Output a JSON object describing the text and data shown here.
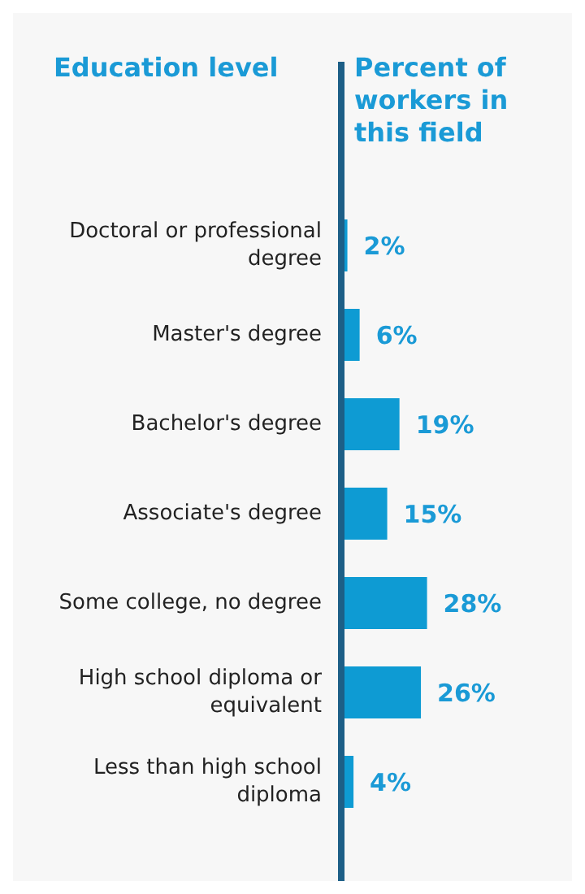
{
  "chart_data": {
    "type": "bar",
    "orientation": "horizontal",
    "ylabel": "Education level",
    "xlabel": "Percent of workers in this field",
    "categories": [
      "Doctoral or professional degree",
      "Master's degree",
      "Bachelor's degree",
      "Associate's degree",
      "Some college, no degree",
      "High school diploma or equivalent",
      "Less than high school diploma"
    ],
    "values": [
      2,
      6,
      19,
      15,
      28,
      26,
      4
    ],
    "value_labels": [
      "2%",
      "6%",
      "19%",
      "15%",
      "28%",
      "26%",
      "4%"
    ],
    "color": "#0e9bd3",
    "tick_labels": "y"
  }
}
